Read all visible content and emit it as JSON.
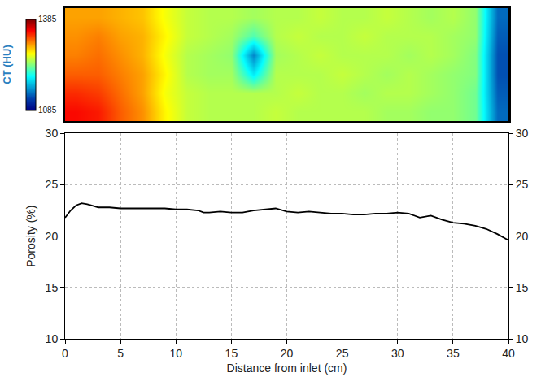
{
  "chart_data": [
    {
      "type": "heatmap",
      "colorbar_title": "CT (HU)",
      "color": "Jet",
      "zlim": [
        1085,
        1385
      ],
      "zticks": [
        1085,
        1385
      ],
      "tick_labels": false,
      "cells": [
        [
          1300,
          1300,
          1295,
          1290,
          1270,
          1255,
          1250,
          1250,
          1245,
          1250,
          1250,
          1255,
          1250,
          1250,
          1255,
          1250,
          1245,
          1250,
          1240,
          1140
        ],
        [
          1305,
          1310,
          1300,
          1295,
          1275,
          1255,
          1250,
          1245,
          1220,
          1250,
          1255,
          1250,
          1250,
          1255,
          1250,
          1250,
          1250,
          1245,
          1240,
          1135
        ],
        [
          1310,
          1315,
          1305,
          1295,
          1270,
          1250,
          1245,
          1240,
          1150,
          1245,
          1250,
          1255,
          1250,
          1250,
          1250,
          1245,
          1250,
          1245,
          1235,
          1130
        ],
        [
          1320,
          1320,
          1310,
          1300,
          1275,
          1250,
          1245,
          1245,
          1190,
          1250,
          1250,
          1250,
          1255,
          1250,
          1245,
          1250,
          1245,
          1240,
          1235,
          1130
        ],
        [
          1335,
          1330,
          1315,
          1300,
          1270,
          1255,
          1250,
          1250,
          1250,
          1250,
          1255,
          1250,
          1250,
          1245,
          1250,
          1250,
          1245,
          1240,
          1230,
          1135
        ],
        [
          1345,
          1340,
          1320,
          1305,
          1275,
          1255,
          1250,
          1250,
          1250,
          1255,
          1250,
          1250,
          1250,
          1250,
          1245,
          1245,
          1240,
          1240,
          1230,
          1140
        ]
      ]
    },
    {
      "type": "line",
      "x_label": "Distance from inlet (cm)",
      "y_label": "Porosity (%)",
      "x": [
        0,
        0.5,
        1,
        1.5,
        2,
        3,
        4,
        5,
        6,
        7,
        8,
        9,
        10,
        11,
        12,
        12.5,
        13,
        14,
        15,
        16,
        17,
        18,
        19,
        20,
        21,
        22,
        23,
        24,
        25,
        26,
        27,
        28,
        29,
        30,
        31,
        32,
        33,
        34,
        35,
        36,
        37,
        38,
        39,
        40
      ],
      "values": [
        21.8,
        22.5,
        23.0,
        23.2,
        23.1,
        22.8,
        22.8,
        22.7,
        22.7,
        22.7,
        22.7,
        22.7,
        22.6,
        22.6,
        22.5,
        22.3,
        22.3,
        22.4,
        22.3,
        22.3,
        22.5,
        22.6,
        22.7,
        22.4,
        22.3,
        22.4,
        22.3,
        22.2,
        22.2,
        22.1,
        22.1,
        22.2,
        22.2,
        22.3,
        22.2,
        21.8,
        22.0,
        21.6,
        21.3,
        21.2,
        21.0,
        20.7,
        20.2,
        19.6
      ],
      "color": "#000000",
      "xlim": [
        0,
        40
      ],
      "xticks": [
        0,
        5,
        10,
        15,
        20,
        25,
        30,
        35,
        40
      ],
      "ylim": [
        10,
        30
      ],
      "yticks": [
        10,
        15,
        20,
        25,
        30
      ],
      "y2lim": [
        10,
        30
      ],
      "y2ticks": [
        10,
        15,
        20,
        25,
        30
      ],
      "grid": true
    }
  ]
}
